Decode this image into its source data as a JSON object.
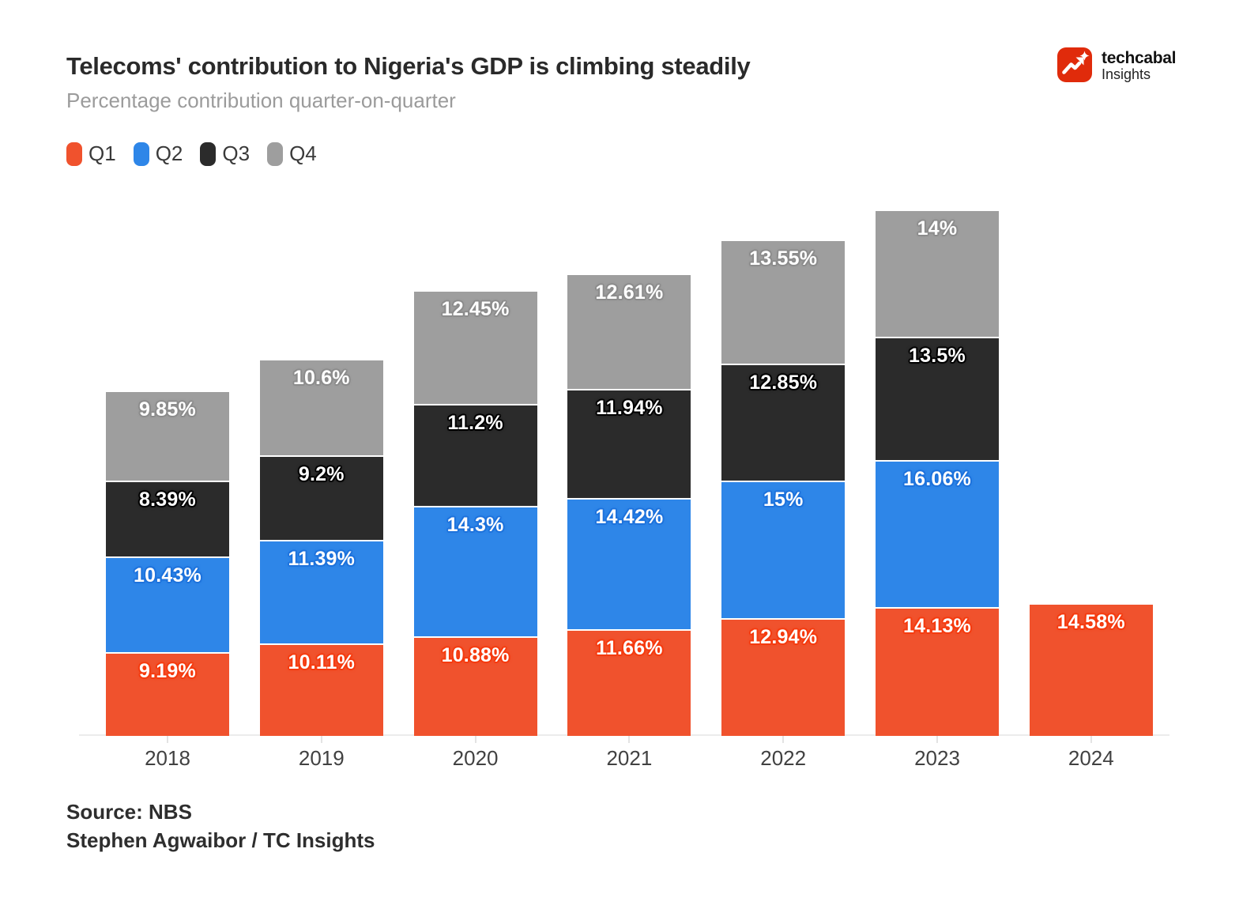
{
  "header": {
    "title": "Telecoms' contribution to Nigeria's GDP is climbing steadily",
    "subtitle": "Percentage contribution quarter-on-quarter"
  },
  "logo": {
    "brand": "techcabal",
    "sub_brand": "Insights",
    "brand_color": "#E02B0B"
  },
  "chart_data": {
    "type": "bar",
    "variant": "stacked-column",
    "title": "Telecoms' contribution to Nigeria's GDP is climbing steadily",
    "subtitle": "Percentage contribution quarter-on-quarter",
    "unit": "%",
    "categories": [
      "2018",
      "2019",
      "2020",
      "2021",
      "2022",
      "2023",
      "2024"
    ],
    "series": [
      {
        "name": "Q1",
        "color": "#F0522D",
        "halo_color": "#F53A0E",
        "values": [
          9.19,
          10.11,
          10.88,
          11.66,
          12.94,
          14.13,
          14.58
        ]
      },
      {
        "name": "Q2",
        "color": "#2E86E8",
        "halo_color": "#1D72DC",
        "values": [
          10.43,
          11.39,
          14.3,
          14.42,
          15,
          16.06,
          null
        ]
      },
      {
        "name": "Q3",
        "color": "#2B2B2B",
        "halo_color": "#000000",
        "values": [
          8.39,
          9.2,
          11.2,
          11.94,
          12.85,
          13.5,
          null
        ]
      },
      {
        "name": "Q4",
        "color": "#9E9E9E",
        "halo_color": "#8C8C8C",
        "values": [
          9.85,
          10.6,
          12.45,
          12.61,
          13.55,
          14,
          null
        ]
      }
    ],
    "value_label_format": "{value}%",
    "legend_position": "top-left",
    "grid": false,
    "y_axis_visible": false,
    "ylim": [
      0,
      60
    ]
  },
  "footer": {
    "source": "Source: NBS",
    "credit": "Stephen Agwaibor / TC Insights"
  }
}
